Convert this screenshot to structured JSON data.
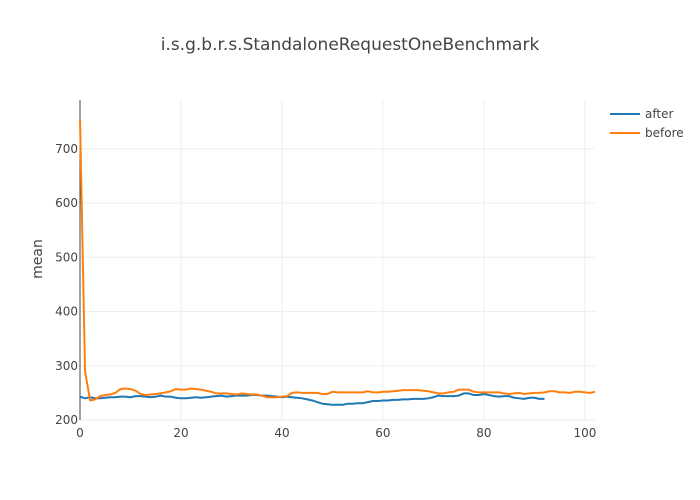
{
  "chart_data": {
    "type": "line",
    "title": "i.s.g.b.r.s.StandaloneRequestOneBenchmark",
    "xlabel": "",
    "ylabel": "mean",
    "xlim": [
      0,
      102
    ],
    "ylim": [
      200,
      790
    ],
    "x_ticks": [
      0,
      20,
      40,
      60,
      80,
      100
    ],
    "y_ticks": [
      200,
      300,
      400,
      500,
      600,
      700
    ],
    "grid": true,
    "legend_position": "top-right",
    "series": [
      {
        "name": "after",
        "color": "#1f77b4",
        "x": [
          0,
          1,
          2,
          3,
          4,
          5,
          6,
          7,
          8,
          9,
          10,
          11,
          12,
          13,
          14,
          15,
          16,
          17,
          18,
          19,
          20,
          21,
          22,
          23,
          24,
          25,
          26,
          27,
          28,
          29,
          30,
          31,
          32,
          33,
          34,
          35,
          36,
          37,
          38,
          39,
          40,
          41,
          42,
          43,
          44,
          45,
          46,
          47,
          48,
          49,
          50,
          51,
          52,
          53,
          54,
          55,
          56,
          57,
          58,
          59,
          60,
          61,
          62,
          63,
          64,
          65,
          66,
          67,
          68,
          69,
          70,
          71,
          72,
          73,
          74,
          75,
          76,
          77,
          78,
          79,
          80,
          81,
          82,
          83,
          84,
          85,
          86,
          87,
          88,
          89,
          90,
          91,
          92
        ],
        "y": [
          243,
          240,
          242,
          240,
          240,
          241,
          242,
          242,
          243,
          243,
          242,
          244,
          244,
          243,
          242,
          243,
          245,
          243,
          243,
          241,
          240,
          240,
          241,
          242,
          241,
          242,
          243,
          244,
          245,
          243,
          244,
          245,
          245,
          245,
          246,
          246,
          245,
          245,
          244,
          243,
          242,
          243,
          242,
          241,
          240,
          238,
          236,
          233,
          230,
          229,
          228,
          228,
          228,
          230,
          230,
          231,
          231,
          233,
          235,
          235,
          236,
          236,
          237,
          237,
          238,
          238,
          239,
          239,
          239,
          240,
          242,
          245,
          244,
          244,
          244,
          245,
          249,
          249,
          246,
          246,
          248,
          246,
          244,
          243,
          244,
          244,
          241,
          240,
          239,
          241,
          241,
          239,
          239
        ]
      },
      {
        "name": "before",
        "color": "#ff7f0e",
        "x": [
          0,
          1,
          2,
          3,
          4,
          5,
          6,
          7,
          8,
          9,
          10,
          11,
          12,
          13,
          14,
          15,
          16,
          17,
          18,
          19,
          20,
          21,
          22,
          23,
          24,
          25,
          26,
          27,
          28,
          29,
          30,
          31,
          32,
          33,
          34,
          35,
          36,
          37,
          38,
          39,
          40,
          41,
          42,
          43,
          44,
          45,
          46,
          47,
          48,
          49,
          50,
          51,
          52,
          53,
          54,
          55,
          56,
          57,
          58,
          59,
          60,
          61,
          62,
          63,
          64,
          65,
          66,
          67,
          68,
          69,
          70,
          71,
          72,
          73,
          74,
          75,
          76,
          77,
          78,
          79,
          80,
          81,
          82,
          83,
          84,
          85,
          86,
          87,
          88,
          89,
          90,
          91,
          92,
          93,
          94,
          95,
          96,
          97,
          98,
          99,
          100,
          101,
          102
        ],
        "y": [
          755,
          290,
          236,
          238,
          244,
          246,
          247,
          250,
          257,
          258,
          257,
          254,
          248,
          246,
          247,
          248,
          249,
          251,
          253,
          257,
          256,
          256,
          258,
          257,
          256,
          254,
          252,
          249,
          249,
          249,
          248,
          247,
          249,
          248,
          247,
          247,
          245,
          242,
          242,
          242,
          243,
          244,
          250,
          251,
          250,
          250,
          250,
          250,
          248,
          248,
          252,
          251,
          251,
          251,
          251,
          251,
          251,
          253,
          251,
          251,
          252,
          252,
          253,
          254,
          255,
          255,
          255,
          255,
          254,
          253,
          251,
          249,
          249,
          251,
          252,
          256,
          256,
          256,
          252,
          251,
          251,
          251,
          251,
          251,
          249,
          248,
          249,
          250,
          248,
          249,
          250,
          250,
          251,
          253,
          253,
          251,
          251,
          250,
          252,
          252,
          251,
          250,
          252
        ]
      }
    ]
  }
}
